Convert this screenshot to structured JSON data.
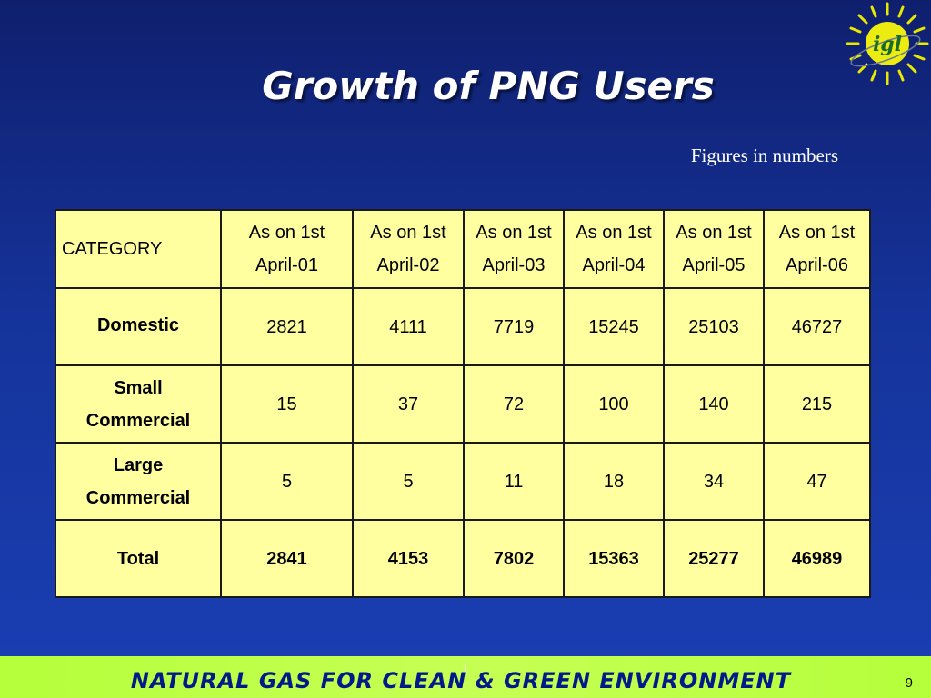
{
  "title": "Growth of PNG Users",
  "note": "Figures in numbers",
  "logo": {
    "text": "igl",
    "icon": "sun-logo-icon",
    "color": "#e6e600"
  },
  "table": {
    "header_category": "CATEGORY",
    "columns": [
      [
        "As on 1st",
        "April-01"
      ],
      [
        "As on 1st",
        "April-02"
      ],
      [
        "As on 1st",
        "April-03"
      ],
      [
        "As on 1st",
        "April-04"
      ],
      [
        "As on 1st",
        "April-05"
      ],
      [
        "As on 1st",
        "April-06"
      ]
    ],
    "rows": [
      {
        "label": [
          "Domestic"
        ],
        "values": [
          "2821",
          "4111",
          "7719",
          "15245",
          "25103",
          "46727"
        ]
      },
      {
        "label": [
          "Small",
          "Commercial"
        ],
        "values": [
          "15",
          "37",
          "72",
          "100",
          "140",
          "215"
        ]
      },
      {
        "label": [
          "Large",
          "Commercial"
        ],
        "values": [
          "5",
          "5",
          "11",
          "18",
          "34",
          "47"
        ]
      },
      {
        "label": [
          "Total"
        ],
        "values": [
          "2841",
          "4153",
          "7802",
          "15363",
          "25277",
          "46989"
        ]
      }
    ]
  },
  "footer": {
    "text": "NATURAL GAS FOR CLEAN & GREEN ENVIRONMENT",
    "page_number": "9",
    "marker": "1"
  },
  "colors": {
    "background": "#15339a",
    "table_fill": "#ffffa0",
    "footer_bar": "#bfff4a",
    "footer_text": "#001a8a"
  }
}
